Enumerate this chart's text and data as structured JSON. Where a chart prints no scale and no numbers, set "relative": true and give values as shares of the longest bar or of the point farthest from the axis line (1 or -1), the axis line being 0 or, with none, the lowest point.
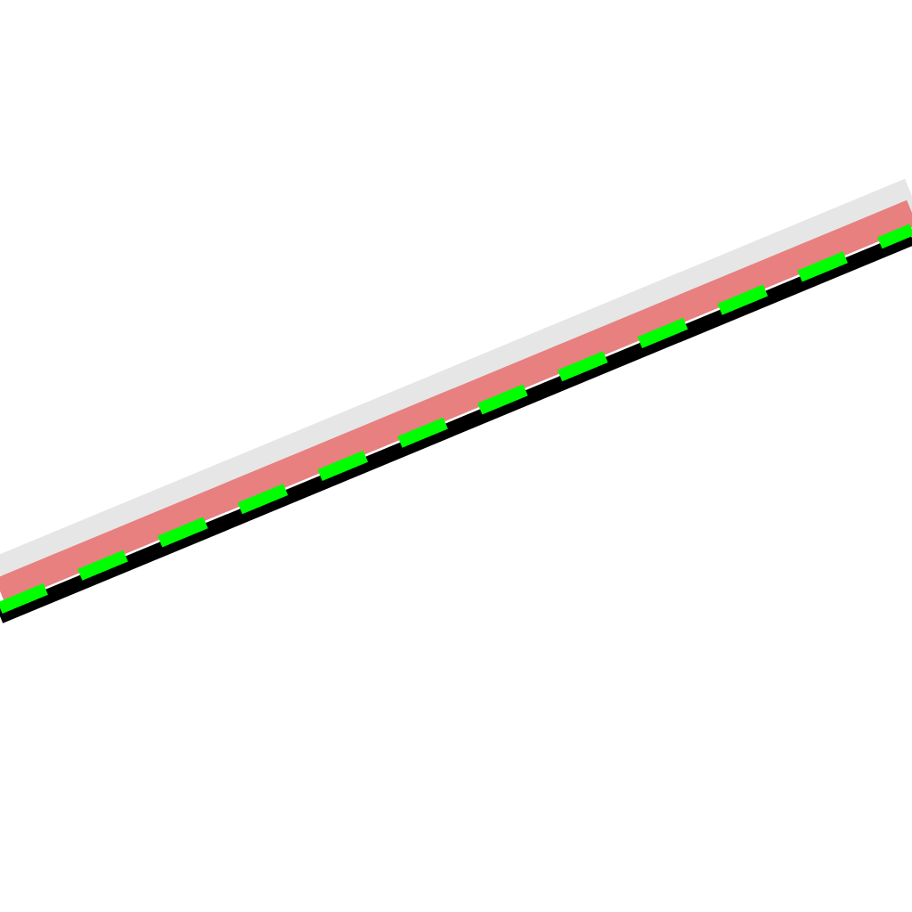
{
  "chart_data": {
    "type": "line",
    "relative": true,
    "categories": [
      null,
      null
    ],
    "marker": "none",
    "series": [
      {
        "color": "#e6e6e6",
        "values": [
          0.1,
          1.0
        ],
        "line_style": "solid"
      },
      {
        "color": "#e88080",
        "values": [
          0.06,
          0.96
        ],
        "line_style": "solid"
      },
      {
        "color": "#000000",
        "values": [
          0.0,
          0.9
        ],
        "line_style": "solid"
      },
      {
        "color": "#00ff00",
        "values": [
          0.02,
          0.92
        ],
        "line_style": "dashed"
      }
    ]
  }
}
